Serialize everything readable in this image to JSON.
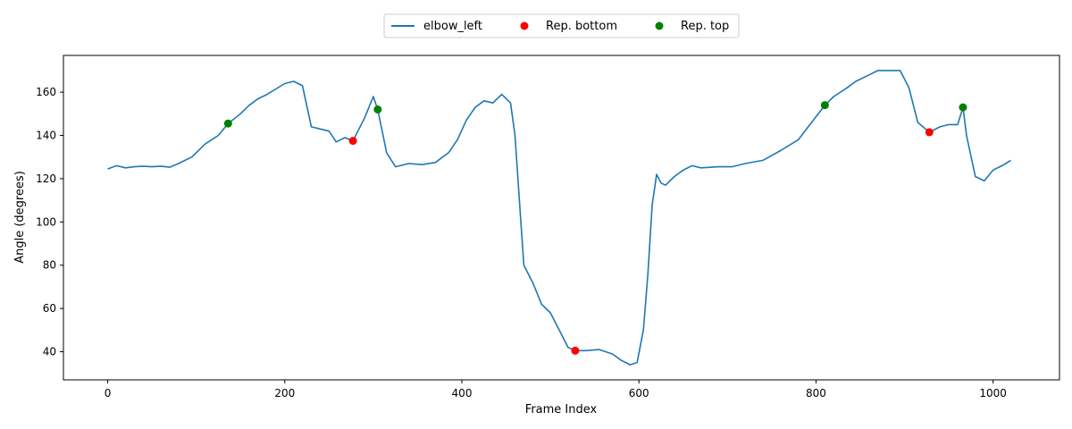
{
  "chart_data": {
    "type": "line",
    "title": "",
    "xlabel": "Frame Index",
    "ylabel": "Angle (degrees)",
    "xlim": [
      -50,
      1075
    ],
    "ylim": [
      27,
      177
    ],
    "xticks": [
      0,
      200,
      400,
      600,
      800,
      1000
    ],
    "yticks": [
      40,
      60,
      80,
      100,
      120,
      140,
      160
    ],
    "grid": false,
    "legend_position": "top-center",
    "series": [
      {
        "name": "elbow_left",
        "kind": "line",
        "color": "#1f77b4",
        "points": [
          [
            0,
            124.5
          ],
          [
            10,
            126
          ],
          [
            20,
            125
          ],
          [
            30,
            125.5
          ],
          [
            40,
            125.8
          ],
          [
            50,
            125.5
          ],
          [
            60,
            125.8
          ],
          [
            70,
            125.3
          ],
          [
            80,
            127
          ],
          [
            95,
            130
          ],
          [
            110,
            136
          ],
          [
            125,
            140
          ],
          [
            136,
            145.5
          ],
          [
            150,
            150
          ],
          [
            160,
            154
          ],
          [
            170,
            157
          ],
          [
            180,
            159
          ],
          [
            190,
            161.5
          ],
          [
            200,
            164
          ],
          [
            210,
            165
          ],
          [
            220,
            163
          ],
          [
            230,
            144
          ],
          [
            240,
            143
          ],
          [
            250,
            142
          ],
          [
            258,
            137
          ],
          [
            268,
            139
          ],
          [
            277,
            137.5
          ],
          [
            290,
            148
          ],
          [
            300,
            158
          ],
          [
            305,
            152
          ],
          [
            315,
            132
          ],
          [
            325,
            125.5
          ],
          [
            340,
            127
          ],
          [
            355,
            126.5
          ],
          [
            370,
            127.5
          ],
          [
            385,
            132
          ],
          [
            395,
            138
          ],
          [
            405,
            147
          ],
          [
            415,
            153
          ],
          [
            425,
            156
          ],
          [
            435,
            155
          ],
          [
            445,
            159
          ],
          [
            455,
            155
          ],
          [
            460,
            140
          ],
          [
            465,
            110
          ],
          [
            470,
            80
          ],
          [
            480,
            72
          ],
          [
            490,
            62
          ],
          [
            500,
            58
          ],
          [
            510,
            50
          ],
          [
            520,
            42
          ],
          [
            528,
            40.5
          ],
          [
            540,
            40.5
          ],
          [
            555,
            41
          ],
          [
            570,
            39
          ],
          [
            580,
            36
          ],
          [
            590,
            34
          ],
          [
            598,
            35
          ],
          [
            605,
            50
          ],
          [
            610,
            75
          ],
          [
            615,
            108
          ],
          [
            620,
            122
          ],
          [
            625,
            118
          ],
          [
            630,
            117
          ],
          [
            640,
            121
          ],
          [
            650,
            124
          ],
          [
            660,
            126
          ],
          [
            670,
            125
          ],
          [
            690,
            125.5
          ],
          [
            705,
            125.5
          ],
          [
            720,
            127
          ],
          [
            740,
            128.5
          ],
          [
            760,
            133
          ],
          [
            780,
            138
          ],
          [
            795,
            146
          ],
          [
            810,
            154
          ],
          [
            820,
            158
          ],
          [
            835,
            162
          ],
          [
            845,
            165
          ],
          [
            860,
            168
          ],
          [
            870,
            170
          ],
          [
            885,
            170
          ],
          [
            895,
            170
          ],
          [
            905,
            162
          ],
          [
            915,
            146
          ],
          [
            928,
            141.5
          ],
          [
            940,
            144
          ],
          [
            950,
            145
          ],
          [
            960,
            145
          ],
          [
            966,
            153
          ],
          [
            970,
            140
          ],
          [
            980,
            121
          ],
          [
            990,
            119
          ],
          [
            1000,
            124
          ],
          [
            1010,
            126
          ],
          [
            1020,
            128.5
          ]
        ]
      },
      {
        "name": "Rep. bottom",
        "kind": "scatter",
        "color": "#ff0000",
        "points": [
          [
            277,
            137.5
          ],
          [
            528,
            40.5
          ],
          [
            928,
            141.5
          ]
        ]
      },
      {
        "name": "Rep. top",
        "kind": "scatter",
        "color": "#008000",
        "points": [
          [
            136,
            145.5
          ],
          [
            305,
            152
          ],
          [
            810,
            154
          ],
          [
            966,
            153
          ]
        ]
      }
    ]
  }
}
